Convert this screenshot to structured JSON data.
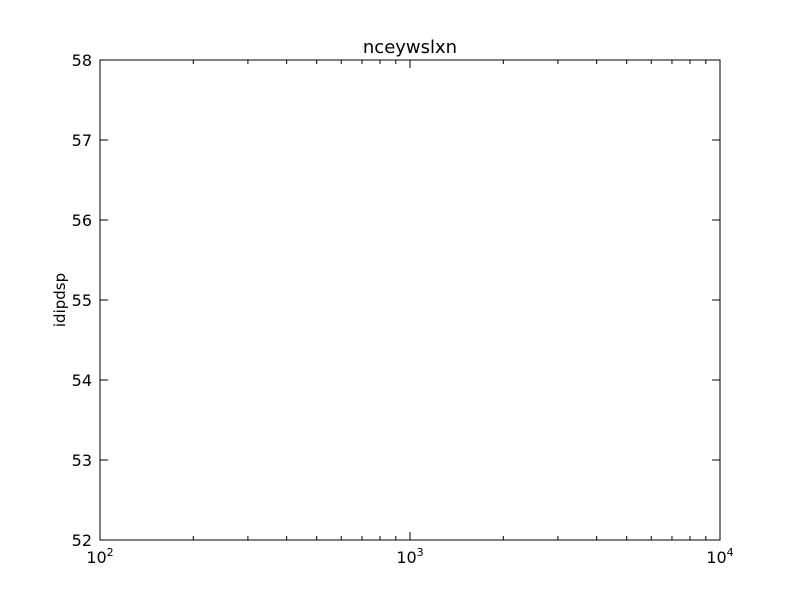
{
  "chart_data": {
    "type": "scatter",
    "title": "nceywslxn",
    "xlabel": "",
    "ylabel": "idipdsp",
    "x_scale": "log",
    "xlim": [
      100,
      10000
    ],
    "ylim": [
      52,
      58
    ],
    "x_ticks": [
      {
        "base": "10",
        "exp": "2",
        "value": 100
      },
      {
        "base": "10",
        "exp": "3",
        "value": 1000
      },
      {
        "base": "10",
        "exp": "4",
        "value": 10000
      }
    ],
    "y_ticks": [
      {
        "label": "52",
        "value": 52
      },
      {
        "label": "53",
        "value": 53
      },
      {
        "label": "54",
        "value": 54
      },
      {
        "label": "55",
        "value": 55
      },
      {
        "label": "56",
        "value": 56
      },
      {
        "label": "57",
        "value": 57
      },
      {
        "label": "58",
        "value": 58
      }
    ],
    "grid": false,
    "series": [],
    "colors": {
      "axis": "#000000",
      "background": "#ffffff"
    }
  }
}
